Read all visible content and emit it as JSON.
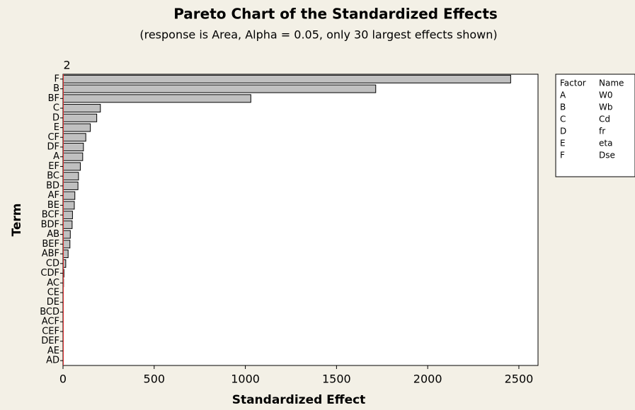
{
  "chart_data": {
    "type": "bar",
    "orientation": "horizontal",
    "title": "Pareto Chart of the Standardized Effects",
    "subtitle": "(response is Area, Alpha = 0.05, only 30 largest effects shown)",
    "x_label": "Standardized Effect",
    "y_label": "Term",
    "categories": [
      "F",
      "B",
      "BF",
      "C",
      "D",
      "E",
      "CF",
      "DF",
      "A",
      "EF",
      "BC",
      "BD",
      "AF",
      "BE",
      "BCF",
      "BDF",
      "AB",
      "BEF",
      "ABF",
      "CD",
      "CDF",
      "AC",
      "CE",
      "DE",
      "BCD",
      "ACF",
      "CEF",
      "DEF",
      "AE",
      "AD"
    ],
    "values": [
      2455,
      1715,
      1030,
      205,
      185,
      150,
      125,
      112,
      108,
      95,
      85,
      82,
      65,
      62,
      52,
      50,
      40,
      38,
      28,
      15,
      5,
      3,
      2,
      2,
      1.5,
      1,
      1,
      0.8,
      0.5,
      0.3
    ],
    "color": "#c0c0c0",
    "xlim": [
      0,
      2605
    ],
    "xticks": [
      0,
      500,
      1000,
      1500,
      2000,
      2500
    ],
    "reference_line": 2,
    "reference_color": "#e03030",
    "factor_table": {
      "headers": [
        "Factor",
        "Name"
      ],
      "rows": [
        [
          "A",
          "W0"
        ],
        [
          "B",
          "Wb"
        ],
        [
          "C",
          "Cd"
        ],
        [
          "D",
          "fr"
        ],
        [
          "E",
          "eta"
        ],
        [
          "F",
          "Dse"
        ]
      ]
    }
  }
}
